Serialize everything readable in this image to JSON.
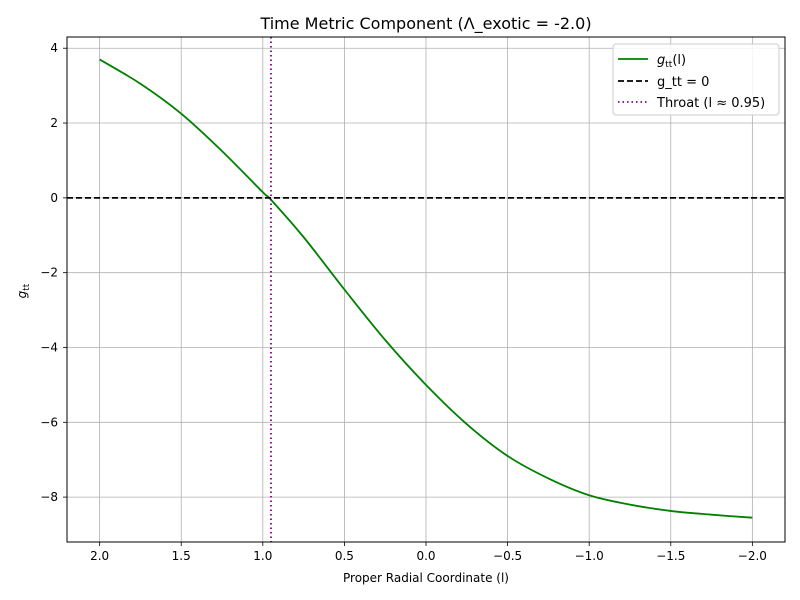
{
  "chart_data": {
    "type": "line",
    "title": "Time Metric Component (Λ_exotic = -2.0)",
    "xlabel": "Proper Radial Coordinate (l)",
    "ylabel": {
      "base": "g",
      "sub": "tt"
    },
    "x_inverted": true,
    "xlim": [
      2.2,
      -2.2
    ],
    "ylim": [
      -9.2,
      4.3
    ],
    "xticks": [
      2.0,
      1.5,
      1.0,
      0.5,
      0.0,
      -0.5,
      -1.0,
      -1.5,
      -2.0
    ],
    "xtick_labels": [
      "2.0",
      "1.5",
      "1.0",
      "0.5",
      "0.0",
      "−0.5",
      "−1.0",
      "−1.5",
      "−2.0"
    ],
    "yticks": [
      4,
      2,
      0,
      -2,
      -4,
      -6,
      -8
    ],
    "ytick_labels": [
      "4",
      "2",
      "0",
      "−2",
      "−4",
      "−6",
      "−8"
    ],
    "grid": true,
    "legend_position": "top-right",
    "series": [
      {
        "name": "g_tt(l)",
        "legend_base": "g",
        "legend_sub": "tt",
        "legend_suffix": "(l)",
        "style": "solid",
        "color": "#008000",
        "x": [
          2.0,
          1.75,
          1.5,
          1.25,
          1.0,
          0.95,
          0.75,
          0.5,
          0.25,
          0.0,
          -0.25,
          -0.5,
          -0.75,
          -1.0,
          -1.25,
          -1.5,
          -1.75,
          -2.0
        ],
        "y": [
          3.7,
          3.05,
          2.25,
          1.25,
          0.15,
          -0.05,
          -1.05,
          -2.45,
          -3.8,
          -5.0,
          -6.05,
          -6.9,
          -7.5,
          -7.95,
          -8.2,
          -8.37,
          -8.47,
          -8.55
        ]
      },
      {
        "name": "g_tt = 0",
        "style": "dashed",
        "color": "#000000",
        "y_constant": 0
      },
      {
        "name": "Throat (l ≈ 0.95)",
        "style": "dotted",
        "color": "#800080",
        "x_constant": 0.95
      }
    ]
  }
}
